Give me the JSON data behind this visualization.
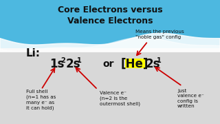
{
  "title_line1": "Core Electrons versus",
  "title_line2": "Valence Electrons",
  "li_label": "Li:",
  "note_noble": "Means the previous\n\"noble gas\" config",
  "note_full": "Full shell\n(n=1 has as\nmany e⁻ as\nit can hold)",
  "note_valence": "Valence e⁻\n(n=2 is the\noutermost shell)",
  "note_just": "Just\nvalence e⁻\nconfig is\nwritten",
  "bg_top_color": "#4db8e0",
  "bg_bottom_color": "#d8d8d8",
  "title_color": "#111111",
  "text_color": "#111111",
  "he_highlight": "#ffff00",
  "arrow_color": "#cc0000",
  "title_fs": 9,
  "main_fs": 12,
  "sup_fs": 7,
  "note_fs": 5.2,
  "li_fs": 11
}
